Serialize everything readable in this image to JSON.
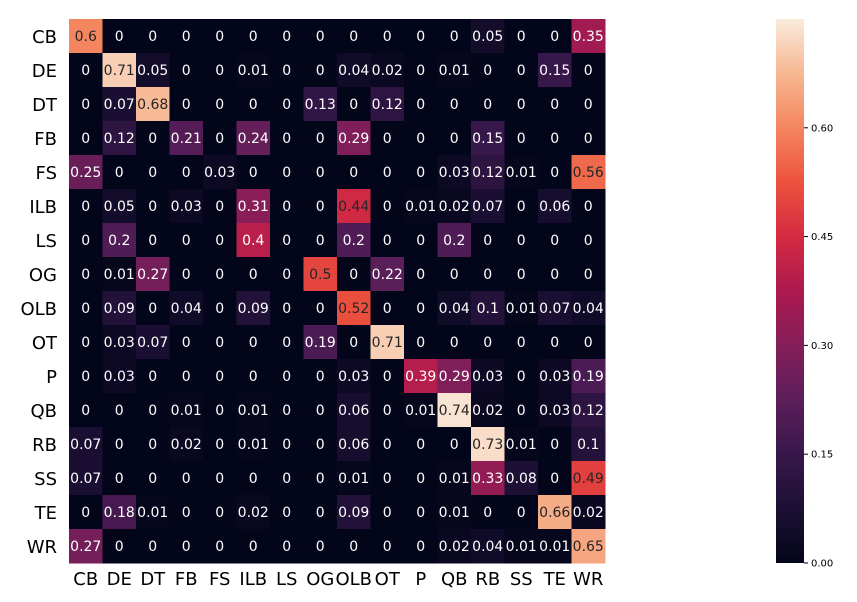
{
  "chart_data": {
    "type": "heatmap",
    "title": "",
    "xlabel": "",
    "ylabel": "",
    "rows": [
      "CB",
      "DE",
      "DT",
      "FB",
      "FS",
      "ILB",
      "LS",
      "OG",
      "OLB",
      "OT",
      "P",
      "QB",
      "RB",
      "SS",
      "TE",
      "WR"
    ],
    "columns": [
      "CB",
      "DE",
      "DT",
      "FB",
      "FS",
      "ILB",
      "LS",
      "OG",
      "OLB",
      "OT",
      "P",
      "QB",
      "RB",
      "SS",
      "TE",
      "WR"
    ],
    "values": [
      [
        "0.6",
        "0",
        "0",
        "0",
        "0",
        "0",
        "0",
        "0",
        "0",
        "0",
        "0",
        "0",
        "0.05",
        "0",
        "0",
        "0.35"
      ],
      [
        "0",
        "0.71",
        "0.05",
        "0",
        "0",
        "0.01",
        "0",
        "0",
        "0.04",
        "0.02",
        "0",
        "0.01",
        "0",
        "0",
        "0.15",
        "0"
      ],
      [
        "0",
        "0.07",
        "0.68",
        "0",
        "0",
        "0",
        "0",
        "0.13",
        "0",
        "0.12",
        "0",
        "0",
        "0",
        "0",
        "0",
        "0"
      ],
      [
        "0",
        "0.12",
        "0",
        "0.21",
        "0",
        "0.24",
        "0",
        "0",
        "0.29",
        "0",
        "0",
        "0",
        "0.15",
        "0",
        "0",
        "0"
      ],
      [
        "0.25",
        "0",
        "0",
        "0",
        "0.03",
        "0",
        "0",
        "0",
        "0",
        "0",
        "0",
        "0.03",
        "0.12",
        "0.01",
        "0",
        "0.56"
      ],
      [
        "0",
        "0.05",
        "0",
        "0.03",
        "0",
        "0.31",
        "0",
        "0",
        "0.44",
        "0",
        "0.01",
        "0.02",
        "0.07",
        "0",
        "0.06",
        "0"
      ],
      [
        "0",
        "0.2",
        "0",
        "0",
        "0",
        "0.4",
        "0",
        "0",
        "0.2",
        "0",
        "0",
        "0.2",
        "0",
        "0",
        "0",
        "0"
      ],
      [
        "0",
        "0.01",
        "0.27",
        "0",
        "0",
        "0",
        "0",
        "0.5",
        "0",
        "0.22",
        "0",
        "0",
        "0",
        "0",
        "0",
        "0"
      ],
      [
        "0",
        "0.09",
        "0",
        "0.04",
        "0",
        "0.09",
        "0",
        "0",
        "0.52",
        "0",
        "0",
        "0.04",
        "0.1",
        "0.01",
        "0.07",
        "0.04"
      ],
      [
        "0",
        "0.03",
        "0.07",
        "0",
        "0",
        "0",
        "0",
        "0.19",
        "0",
        "0.71",
        "0",
        "0",
        "0",
        "0",
        "0",
        "0"
      ],
      [
        "0",
        "0.03",
        "0",
        "0",
        "0",
        "0",
        "0",
        "0",
        "0.03",
        "0",
        "0.39",
        "0.29",
        "0.03",
        "0",
        "0.03",
        "0.19"
      ],
      [
        "0",
        "0",
        "0",
        "0.01",
        "0",
        "0.01",
        "0",
        "0",
        "0.06",
        "0",
        "0.01",
        "0.74",
        "0.02",
        "0",
        "0.03",
        "0.12"
      ],
      [
        "0.07",
        "0",
        "0",
        "0.02",
        "0",
        "0.01",
        "0",
        "0",
        "0.06",
        "0",
        "0",
        "0",
        "0.73",
        "0.01",
        "0",
        "0.1"
      ],
      [
        "0.07",
        "0",
        "0",
        "0",
        "0",
        "0",
        "0",
        "0",
        "0.01",
        "0",
        "0",
        "0.01",
        "0.33",
        "0.08",
        "0",
        "0.49"
      ],
      [
        "0",
        "0.18",
        "0.01",
        "0",
        "0",
        "0.02",
        "0",
        "0",
        "0.09",
        "0",
        "0",
        "0.01",
        "0",
        "0",
        "0.66",
        "0.02"
      ],
      [
        "0.27",
        "0",
        "0",
        "0",
        "0",
        "0",
        "0",
        "0",
        "0",
        "0",
        "0",
        "0.02",
        "0.04",
        "0.01",
        "0.01",
        "0.65"
      ]
    ],
    "vmin": 0,
    "vmax": 0.75,
    "colorbar": {
      "ticks": [
        0.0,
        0.15,
        0.3,
        0.45,
        0.6
      ],
      "tick_labels": [
        "0.00",
        "0.15",
        "0.30",
        "0.45",
        "0.60"
      ],
      "colormap": "rocket"
    },
    "grid": false,
    "legend": "colorbar-right"
  }
}
